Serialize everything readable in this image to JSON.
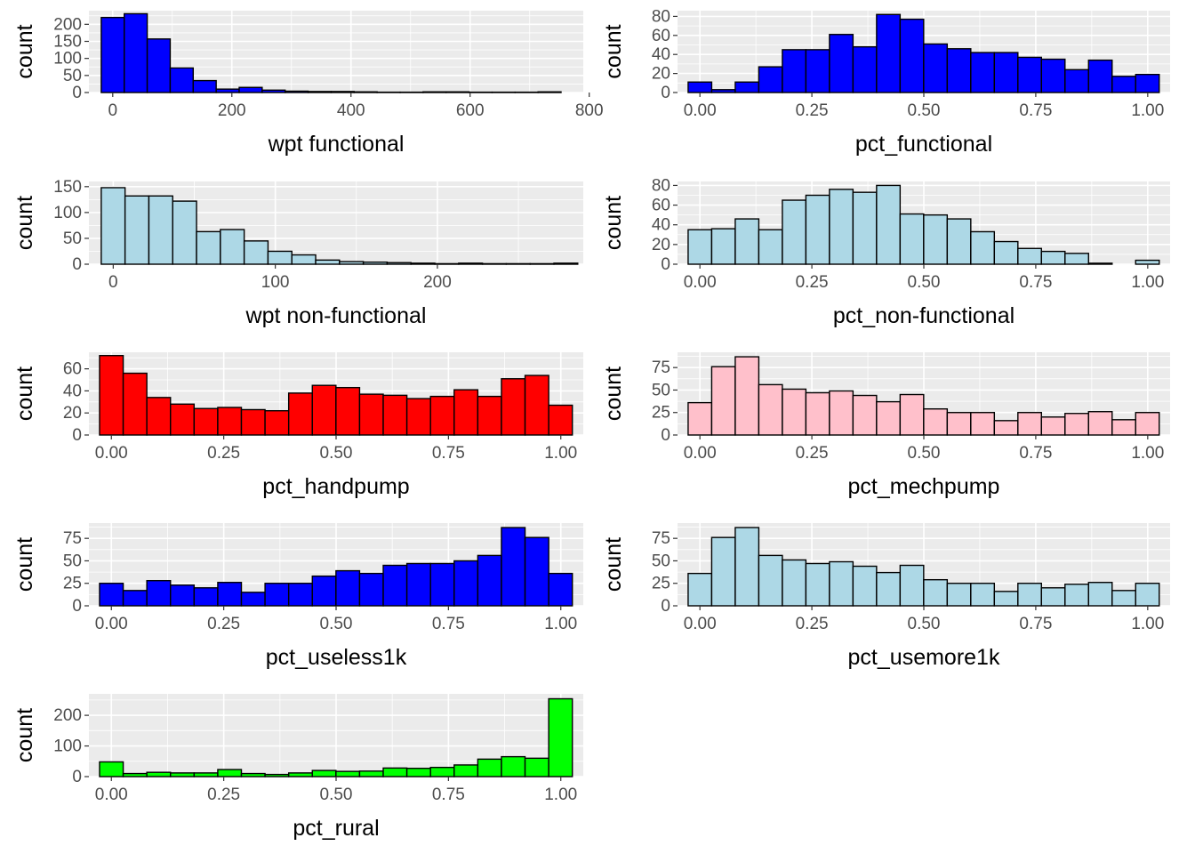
{
  "chart_data": [
    {
      "type": "bar",
      "xlabel": "wpt functional",
      "ylabel": "count",
      "fill": "#0000ff",
      "xlim": [
        -40,
        790
      ],
      "ylim": [
        0,
        240
      ],
      "xticks": [
        0,
        200,
        400,
        600,
        800
      ],
      "xtick_labels": [
        "0",
        "200",
        "400",
        "600",
        "800"
      ],
      "yticks": [
        0,
        50,
        100,
        150,
        200
      ],
      "ytick_labels": [
        "0",
        "50",
        "100",
        "150",
        "200"
      ],
      "bin_start": -19.3,
      "bin_width": 38.6,
      "values": [
        220,
        231,
        157,
        72,
        35,
        10,
        15,
        7,
        4,
        3,
        3,
        2,
        1,
        1,
        2,
        2,
        1,
        1,
        1,
        2
      ]
    },
    {
      "type": "bar",
      "xlabel": "pct_functional",
      "ylabel": "count",
      "fill": "#0000ff",
      "xlim": [
        -0.05,
        1.05
      ],
      "ylim": [
        0,
        86
      ],
      "xticks": [
        0,
        0.25,
        0.5,
        0.75,
        1
      ],
      "xtick_labels": [
        "0.00",
        "0.25",
        "0.50",
        "0.75",
        "1.00"
      ],
      "yticks": [
        0,
        20,
        40,
        60,
        80
      ],
      "ytick_labels": [
        "0",
        "20",
        "40",
        "60",
        "80"
      ],
      "bin_start": -0.0263,
      "bin_width": 0.0526,
      "values": [
        11,
        3,
        11,
        27,
        45,
        45,
        61,
        48,
        82,
        77,
        51,
        46,
        42,
        42,
        37,
        35,
        24,
        34,
        17,
        19
      ]
    },
    {
      "type": "bar",
      "xlabel": "wpt non-functional",
      "ylabel": "count",
      "fill": "#add8e6",
      "xlim": [
        -15,
        290
      ],
      "ylim": [
        0,
        160
      ],
      "xticks": [
        0,
        100,
        200
      ],
      "xtick_labels": [
        "0",
        "100",
        "200"
      ],
      "yticks": [
        0,
        50,
        100,
        150
      ],
      "ytick_labels": [
        "0",
        "50",
        "100",
        "150"
      ],
      "bin_start": -7.4,
      "bin_width": 14.7,
      "values": [
        148,
        132,
        132,
        122,
        63,
        67,
        45,
        25,
        18,
        8,
        5,
        4,
        3,
        2,
        1,
        2,
        1,
        1,
        1,
        2
      ]
    },
    {
      "type": "bar",
      "xlabel": "pct_non-functional",
      "ylabel": "count",
      "fill": "#add8e6",
      "xlim": [
        -0.05,
        1.05
      ],
      "ylim": [
        0,
        84
      ],
      "xticks": [
        0,
        0.25,
        0.5,
        0.75,
        1
      ],
      "xtick_labels": [
        "0.00",
        "0.25",
        "0.50",
        "0.75",
        "1.00"
      ],
      "yticks": [
        0,
        20,
        40,
        60,
        80
      ],
      "ytick_labels": [
        "0",
        "20",
        "40",
        "60",
        "80"
      ],
      "bin_start": -0.0263,
      "bin_width": 0.0526,
      "values": [
        35,
        36,
        46,
        35,
        65,
        70,
        76,
        73,
        80,
        51,
        50,
        46,
        33,
        23,
        16,
        13,
        11,
        1,
        0,
        4
      ]
    },
    {
      "type": "bar",
      "xlabel": "pct_handpump",
      "ylabel": "count",
      "fill": "#ff0000",
      "xlim": [
        -0.05,
        1.05
      ],
      "ylim": [
        0,
        75
      ],
      "xticks": [
        0,
        0.25,
        0.5,
        0.75,
        1
      ],
      "xtick_labels": [
        "0.00",
        "0.25",
        "0.50",
        "0.75",
        "1.00"
      ],
      "yticks": [
        0,
        20,
        40,
        60
      ],
      "ytick_labels": [
        "0",
        "20",
        "40",
        "60"
      ],
      "bin_start": -0.0263,
      "bin_width": 0.0526,
      "values": [
        72,
        56,
        34,
        28,
        24,
        25,
        23,
        22,
        38,
        45,
        43,
        37,
        36,
        33,
        35,
        41,
        35,
        51,
        54,
        27
      ]
    },
    {
      "type": "bar",
      "xlabel": "pct_mechpump",
      "ylabel": "count",
      "fill": "#ffc0cb",
      "xlim": [
        -0.05,
        1.05
      ],
      "ylim": [
        0,
        92
      ],
      "xticks": [
        0,
        0.25,
        0.5,
        0.75,
        1
      ],
      "xtick_labels": [
        "0.00",
        "0.25",
        "0.50",
        "0.75",
        "1.00"
      ],
      "yticks": [
        0,
        25,
        50,
        75
      ],
      "ytick_labels": [
        "0",
        "25",
        "50",
        "75"
      ],
      "bin_start": -0.0263,
      "bin_width": 0.0526,
      "values": [
        36,
        76,
        87,
        56,
        51,
        47,
        49,
        44,
        37,
        45,
        29,
        25,
        25,
        16,
        25,
        20,
        24,
        26,
        17,
        25
      ]
    },
    {
      "type": "bar",
      "xlabel": "pct_useless1k",
      "ylabel": "count",
      "fill": "#0000ff",
      "xlim": [
        -0.05,
        1.05
      ],
      "ylim": [
        0,
        92
      ],
      "xticks": [
        0,
        0.25,
        0.5,
        0.75,
        1
      ],
      "xtick_labels": [
        "0.00",
        "0.25",
        "0.50",
        "0.75",
        "1.00"
      ],
      "yticks": [
        0,
        25,
        50,
        75
      ],
      "ytick_labels": [
        "0",
        "25",
        "50",
        "75"
      ],
      "bin_start": -0.0263,
      "bin_width": 0.0526,
      "values": [
        25,
        17,
        28,
        23,
        20,
        26,
        15,
        25,
        25,
        33,
        39,
        36,
        45,
        47,
        47,
        50,
        56,
        87,
        76,
        36
      ]
    },
    {
      "type": "bar",
      "xlabel": "pct_usemore1k",
      "ylabel": "count",
      "fill": "#add8e6",
      "xlim": [
        -0.05,
        1.05
      ],
      "ylim": [
        0,
        92
      ],
      "xticks": [
        0,
        0.25,
        0.5,
        0.75,
        1
      ],
      "xtick_labels": [
        "0.00",
        "0.25",
        "0.50",
        "0.75",
        "1.00"
      ],
      "yticks": [
        0,
        25,
        50,
        75
      ],
      "ytick_labels": [
        "0",
        "25",
        "50",
        "75"
      ],
      "bin_start": -0.0263,
      "bin_width": 0.0526,
      "values": [
        36,
        76,
        87,
        56,
        51,
        47,
        49,
        44,
        37,
        45,
        29,
        25,
        25,
        16,
        25,
        20,
        24,
        26,
        17,
        25
      ]
    },
    {
      "type": "bar",
      "xlabel": "pct_rural",
      "ylabel": "count",
      "fill": "#00ff00",
      "xlim": [
        -0.05,
        1.05
      ],
      "ylim": [
        0,
        270
      ],
      "xticks": [
        0,
        0.25,
        0.5,
        0.75,
        1
      ],
      "xtick_labels": [
        "0.00",
        "0.25",
        "0.50",
        "0.75",
        "1.00"
      ],
      "yticks": [
        0,
        100,
        200
      ],
      "ytick_labels": [
        "0",
        "100",
        "200"
      ],
      "bin_start": -0.0263,
      "bin_width": 0.0526,
      "values": [
        48,
        10,
        14,
        12,
        12,
        23,
        10,
        7,
        12,
        20,
        17,
        18,
        28,
        27,
        30,
        38,
        57,
        65,
        60,
        254
      ]
    }
  ]
}
